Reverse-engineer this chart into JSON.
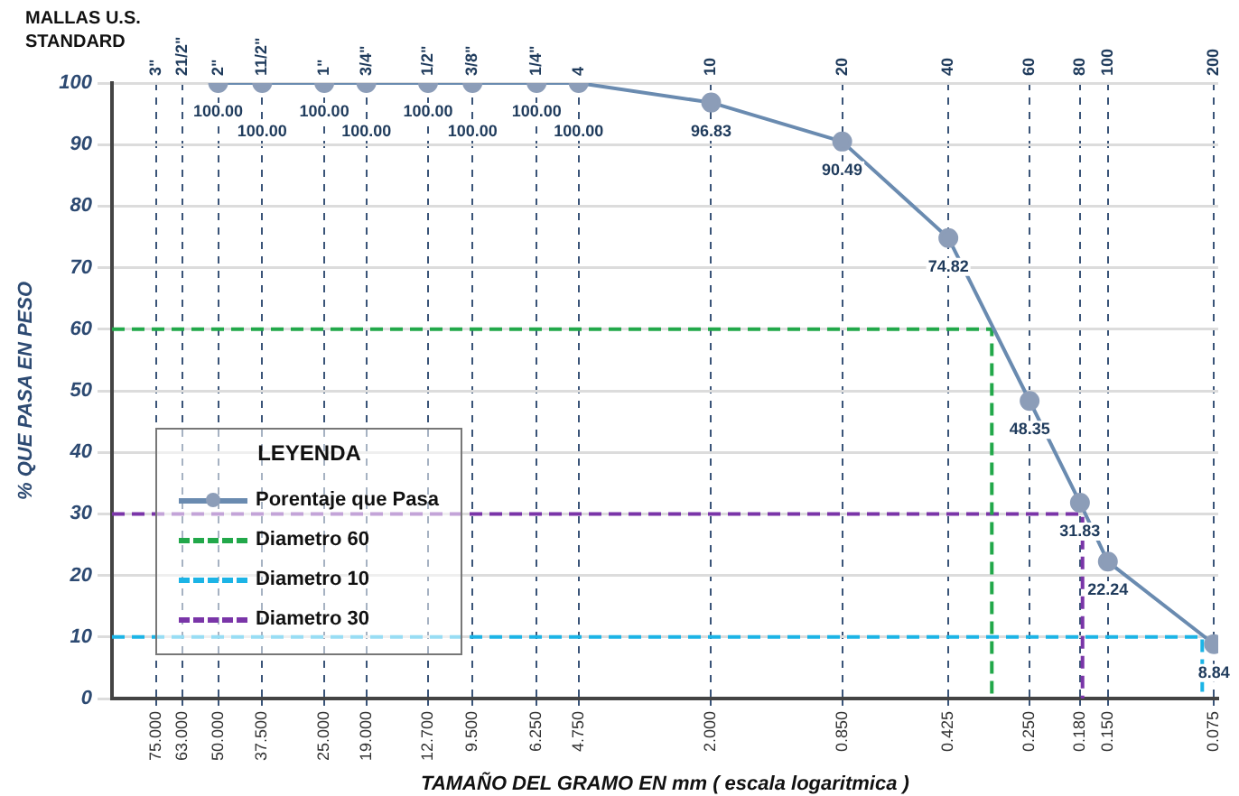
{
  "chart_data": {
    "type": "line",
    "xlabel": "TAMAÑO DEL GRAMO EN mm ( escala logaritmica )",
    "ylabel": "% QUE PASA EN PESO",
    "x2label": "MALLAS U.S. STANDARD",
    "legend_title": "LEYENDA",
    "log": "x",
    "grid": true,
    "legend": "left",
    "xlim": [
      100,
      0.073
    ],
    "xticks": [
      {
        "value": 75,
        "label": "75.000"
      },
      {
        "value": 63,
        "label": "63.000"
      },
      {
        "value": 50,
        "label": "50.000"
      },
      {
        "value": 37.5,
        "label": "37.500"
      },
      {
        "value": 25,
        "label": "25.000"
      },
      {
        "value": 19,
        "label": "19.000"
      },
      {
        "value": 12.7,
        "label": "12.700"
      },
      {
        "value": 9.5,
        "label": "9.500"
      },
      {
        "value": 6.25,
        "label": "6.250"
      },
      {
        "value": 4.75,
        "label": "4.750"
      },
      {
        "value": 2,
        "label": "2.000"
      },
      {
        "value": 0.85,
        "label": "0.850"
      },
      {
        "value": 0.425,
        "label": "0.425"
      },
      {
        "value": 0.25,
        "label": "0.250"
      },
      {
        "value": 0.18,
        "label": "0.180"
      },
      {
        "value": 0.15,
        "label": "0.150"
      },
      {
        "value": 0.075,
        "label": "0.075"
      }
    ],
    "annotations": [
      "3\"",
      "21/2\"",
      "2\"",
      "11/2\"",
      "1\"",
      "3/4\"",
      "1/2\"",
      "3/8\"",
      "1/4\"",
      "4",
      "10",
      "20",
      "40",
      "60",
      "80",
      "100",
      "200"
    ],
    "ylim": [
      0,
      100
    ],
    "yticks": [
      0,
      10,
      20,
      30,
      40,
      50,
      60,
      70,
      80,
      90,
      100
    ],
    "series": [
      {
        "name": "Porentaje que Pasa",
        "color": "#6a8bb0",
        "marker": "circle",
        "line_style": "solid",
        "x": [
          50,
          37.5,
          25,
          19,
          12.7,
          9.5,
          6.25,
          4.75,
          2,
          0.85,
          0.425,
          0.25,
          0.18,
          0.15,
          0.075
        ],
        "values": [
          100,
          100,
          100,
          100,
          100,
          100,
          100,
          100,
          96.83,
          90.49,
          74.82,
          48.35,
          31.83,
          22.24,
          8.84
        ],
        "value_labels": [
          "100.00",
          "100.00",
          "100.00",
          "100.00",
          "100.00",
          "100.00",
          "100.00",
          "100.00",
          "96.83",
          "90.49",
          "74.82",
          "48.35",
          "31.83",
          "22.24",
          "8.84"
        ]
      },
      {
        "name": "Diametro 60",
        "color": "#22a84a",
        "marker": "none",
        "line_style": "dashed",
        "x": [
          100,
          0.32,
          0.32
        ],
        "values": [
          60,
          60,
          0
        ]
      },
      {
        "name": "Diametro 10",
        "color": "#1cb4e6",
        "marker": "none",
        "line_style": "dashed",
        "x": [
          100,
          0.081,
          0.081
        ],
        "values": [
          10,
          10,
          0
        ]
      },
      {
        "name": "Diametro 30",
        "color": "#7a35a8",
        "marker": "none",
        "line_style": "dashed",
        "x": [
          100,
          0.177,
          0.177
        ],
        "values": [
          30,
          30,
          0
        ]
      }
    ]
  }
}
